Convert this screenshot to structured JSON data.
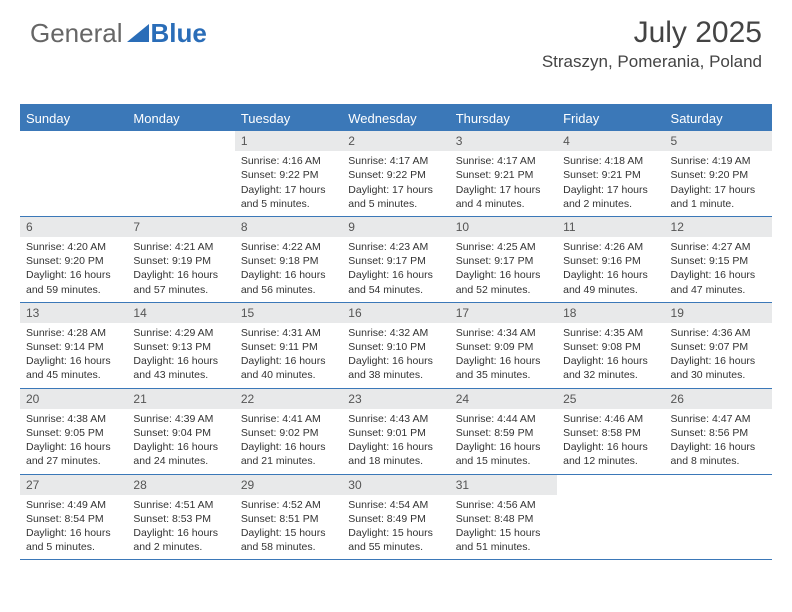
{
  "brand": {
    "text1": "General",
    "text2": "Blue",
    "color1": "#707070",
    "color2": "#2a6db8",
    "icon_color": "#2a6db8"
  },
  "title": "July 2025",
  "location": "Straszyn, Pomerania, Poland",
  "colors": {
    "header_bg": "#3b78b8",
    "header_text": "#ffffff",
    "daynum_bg": "#e8e9ea",
    "border": "#3b78b8",
    "text": "#333333"
  },
  "day_headers": [
    "Sunday",
    "Monday",
    "Tuesday",
    "Wednesday",
    "Thursday",
    "Friday",
    "Saturday"
  ],
  "weeks": [
    [
      null,
      null,
      {
        "n": "1",
        "sr": "4:16 AM",
        "ss": "9:22 PM",
        "dl": "17 hours and 5 minutes."
      },
      {
        "n": "2",
        "sr": "4:17 AM",
        "ss": "9:22 PM",
        "dl": "17 hours and 5 minutes."
      },
      {
        "n": "3",
        "sr": "4:17 AM",
        "ss": "9:21 PM",
        "dl": "17 hours and 4 minutes."
      },
      {
        "n": "4",
        "sr": "4:18 AM",
        "ss": "9:21 PM",
        "dl": "17 hours and 2 minutes."
      },
      {
        "n": "5",
        "sr": "4:19 AM",
        "ss": "9:20 PM",
        "dl": "17 hours and 1 minute."
      }
    ],
    [
      {
        "n": "6",
        "sr": "4:20 AM",
        "ss": "9:20 PM",
        "dl": "16 hours and 59 minutes."
      },
      {
        "n": "7",
        "sr": "4:21 AM",
        "ss": "9:19 PM",
        "dl": "16 hours and 57 minutes."
      },
      {
        "n": "8",
        "sr": "4:22 AM",
        "ss": "9:18 PM",
        "dl": "16 hours and 56 minutes."
      },
      {
        "n": "9",
        "sr": "4:23 AM",
        "ss": "9:17 PM",
        "dl": "16 hours and 54 minutes."
      },
      {
        "n": "10",
        "sr": "4:25 AM",
        "ss": "9:17 PM",
        "dl": "16 hours and 52 minutes."
      },
      {
        "n": "11",
        "sr": "4:26 AM",
        "ss": "9:16 PM",
        "dl": "16 hours and 49 minutes."
      },
      {
        "n": "12",
        "sr": "4:27 AM",
        "ss": "9:15 PM",
        "dl": "16 hours and 47 minutes."
      }
    ],
    [
      {
        "n": "13",
        "sr": "4:28 AM",
        "ss": "9:14 PM",
        "dl": "16 hours and 45 minutes."
      },
      {
        "n": "14",
        "sr": "4:29 AM",
        "ss": "9:13 PM",
        "dl": "16 hours and 43 minutes."
      },
      {
        "n": "15",
        "sr": "4:31 AM",
        "ss": "9:11 PM",
        "dl": "16 hours and 40 minutes."
      },
      {
        "n": "16",
        "sr": "4:32 AM",
        "ss": "9:10 PM",
        "dl": "16 hours and 38 minutes."
      },
      {
        "n": "17",
        "sr": "4:34 AM",
        "ss": "9:09 PM",
        "dl": "16 hours and 35 minutes."
      },
      {
        "n": "18",
        "sr": "4:35 AM",
        "ss": "9:08 PM",
        "dl": "16 hours and 32 minutes."
      },
      {
        "n": "19",
        "sr": "4:36 AM",
        "ss": "9:07 PM",
        "dl": "16 hours and 30 minutes."
      }
    ],
    [
      {
        "n": "20",
        "sr": "4:38 AM",
        "ss": "9:05 PM",
        "dl": "16 hours and 27 minutes."
      },
      {
        "n": "21",
        "sr": "4:39 AM",
        "ss": "9:04 PM",
        "dl": "16 hours and 24 minutes."
      },
      {
        "n": "22",
        "sr": "4:41 AM",
        "ss": "9:02 PM",
        "dl": "16 hours and 21 minutes."
      },
      {
        "n": "23",
        "sr": "4:43 AM",
        "ss": "9:01 PM",
        "dl": "16 hours and 18 minutes."
      },
      {
        "n": "24",
        "sr": "4:44 AM",
        "ss": "8:59 PM",
        "dl": "16 hours and 15 minutes."
      },
      {
        "n": "25",
        "sr": "4:46 AM",
        "ss": "8:58 PM",
        "dl": "16 hours and 12 minutes."
      },
      {
        "n": "26",
        "sr": "4:47 AM",
        "ss": "8:56 PM",
        "dl": "16 hours and 8 minutes."
      }
    ],
    [
      {
        "n": "27",
        "sr": "4:49 AM",
        "ss": "8:54 PM",
        "dl": "16 hours and 5 minutes."
      },
      {
        "n": "28",
        "sr": "4:51 AM",
        "ss": "8:53 PM",
        "dl": "16 hours and 2 minutes."
      },
      {
        "n": "29",
        "sr": "4:52 AM",
        "ss": "8:51 PM",
        "dl": "15 hours and 58 minutes."
      },
      {
        "n": "30",
        "sr": "4:54 AM",
        "ss": "8:49 PM",
        "dl": "15 hours and 55 minutes."
      },
      {
        "n": "31",
        "sr": "4:56 AM",
        "ss": "8:48 PM",
        "dl": "15 hours and 51 minutes."
      },
      null,
      null
    ]
  ],
  "labels": {
    "sunrise": "Sunrise:",
    "sunset": "Sunset:",
    "daylight": "Daylight:"
  }
}
